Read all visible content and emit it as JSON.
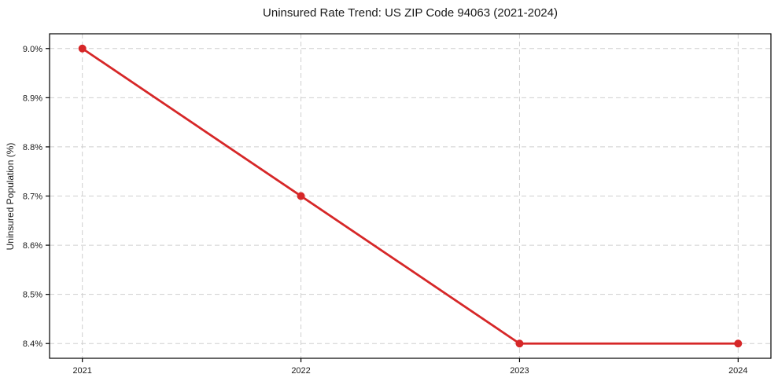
{
  "chart_data": {
    "type": "line",
    "title": "Uninsured Rate Trend: US ZIP Code 94063 (2021-2024)",
    "ylabel": "Uninsured Population (%)",
    "xlabel": "",
    "x": [
      2021,
      2022,
      2023,
      2024
    ],
    "xtick_labels": [
      "2021",
      "2022",
      "2023",
      "2024"
    ],
    "series": [
      {
        "values": [
          9.0,
          8.7,
          8.4,
          8.4
        ]
      }
    ],
    "yticks": [
      8.4,
      8.5,
      8.6,
      8.7,
      8.8,
      8.9,
      9.0
    ],
    "ytick_labels": [
      "8.4%",
      "8.5%",
      "8.6%",
      "8.7%",
      "8.8%",
      "8.9%",
      "9.0%"
    ],
    "xlim": [
      2020.85,
      2024.15
    ],
    "ylim": [
      8.37,
      9.03
    ],
    "grid": true,
    "legend": "none",
    "colors": {
      "line": "#d62728",
      "marker": "#d62728",
      "grid": "#cfcfcf",
      "axis": "#000000",
      "text": "#1a1a1a",
      "background": "#ffffff"
    }
  }
}
